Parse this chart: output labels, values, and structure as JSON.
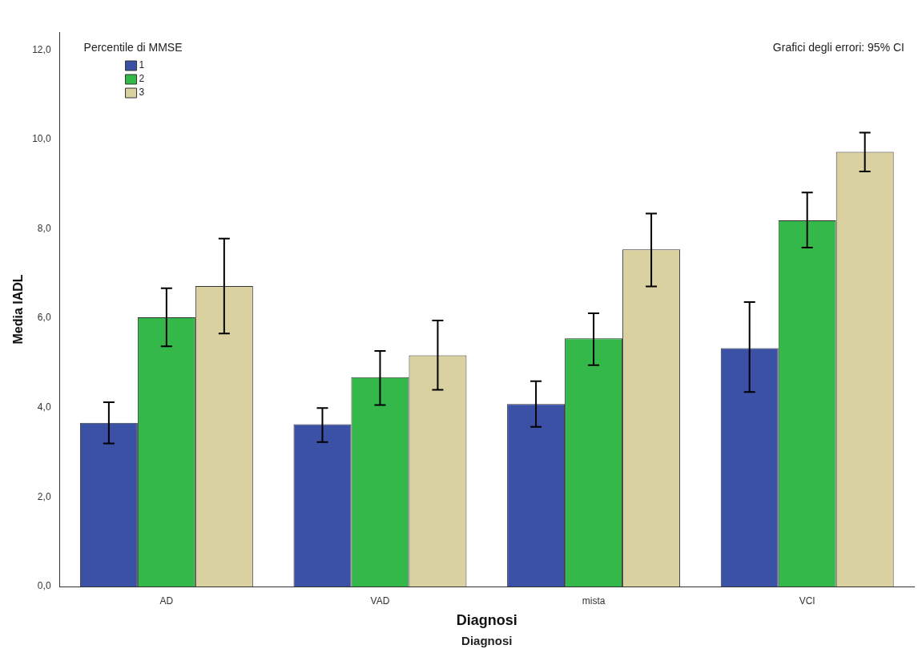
{
  "chart_data": {
    "type": "bar",
    "xlabel": "Diagnosi",
    "ylabel": "Media IADL",
    "legend_title": "Percentile di MMSE",
    "legend": "top left",
    "grid": false,
    "categories": [
      "AD",
      "VAD",
      "mista",
      "VCI"
    ],
    "series": [
      {
        "name": "1",
        "color": "#3a51a6",
        "values": [
          3.66,
          3.63,
          4.08,
          5.33
        ],
        "errors": [
          [
            3.2,
            4.12
          ],
          [
            3.23,
            3.99
          ],
          [
            3.57,
            4.59
          ],
          [
            4.35,
            6.36
          ]
        ]
      },
      {
        "name": "2",
        "color": "#35b84a",
        "values": [
          6.02,
          4.68,
          5.55,
          8.19
        ],
        "errors": [
          [
            5.37,
            6.67
          ],
          [
            4.06,
            5.27
          ],
          [
            4.95,
            6.11
          ],
          [
            7.58,
            8.81
          ]
        ]
      },
      {
        "name": "3",
        "color": "#d9d2a0",
        "values": [
          6.72,
          5.17,
          7.54,
          9.72
        ],
        "errors": [
          [
            5.66,
            7.78
          ],
          [
            4.4,
            5.95
          ],
          [
            6.71,
            8.34
          ],
          [
            9.28,
            10.15
          ]
        ]
      }
    ],
    "ylim": [
      0,
      12.4
    ],
    "yticks": [
      {
        "value": 0,
        "label": "0,0"
      },
      {
        "value": 2,
        "label": "2,0"
      },
      {
        "value": 4,
        "label": "4,0"
      },
      {
        "value": 6,
        "label": "6,0"
      },
      {
        "value": 8,
        "label": "8,0"
      },
      {
        "value": 10,
        "label": "10,0"
      },
      {
        "value": 12,
        "label": "12,0"
      }
    ],
    "annotations": [
      "Grafici degli errori: 95% CI",
      "Diagnosi"
    ]
  }
}
